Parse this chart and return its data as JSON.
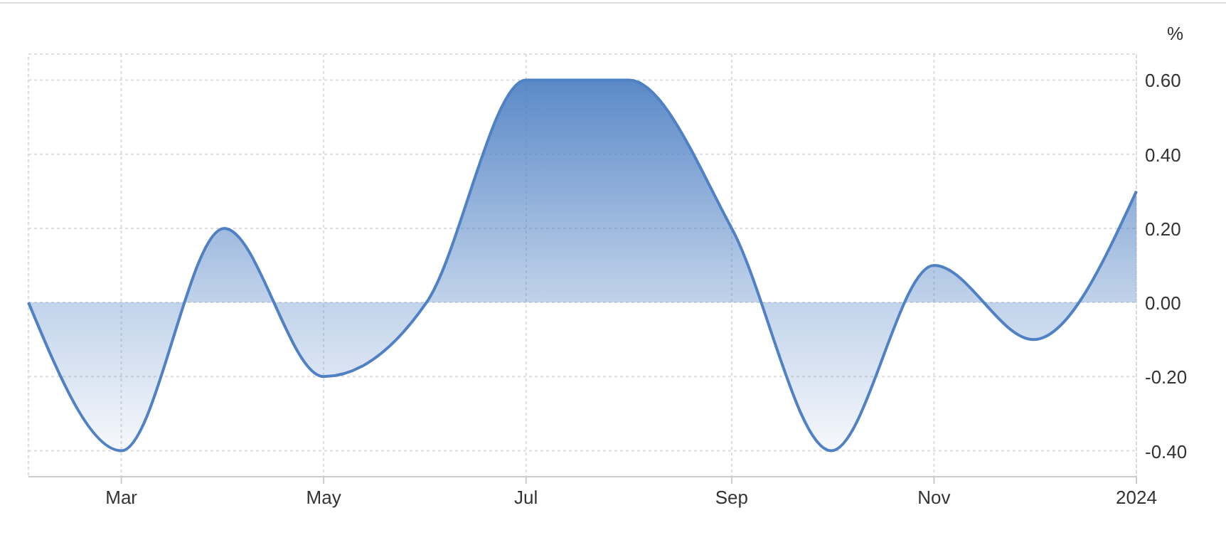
{
  "chart_data": {
    "type": "area",
    "ylabel": "%",
    "x": [
      "2023-02",
      "2023-03",
      "2023-04",
      "2023-05",
      "2023-06",
      "2023-07",
      "2023-08",
      "2023-09",
      "2023-10",
      "2023-11",
      "2023-12",
      "2024-01"
    ],
    "values": [
      0.0,
      -0.4,
      0.2,
      -0.2,
      0.0,
      0.6,
      0.6,
      0.2,
      -0.4,
      0.1,
      -0.1,
      0.3
    ],
    "color": "#4f81c4",
    "xlim": [
      "2023-02",
      "2024-01"
    ],
    "xticks": [
      {
        "value": "2023-03",
        "label": "Mar"
      },
      {
        "value": "2023-05",
        "label": "May"
      },
      {
        "value": "2023-07",
        "label": "Jul"
      },
      {
        "value": "2023-09",
        "label": "Sep"
      },
      {
        "value": "2023-11",
        "label": "Nov"
      },
      {
        "value": "2024-01",
        "label": "2024"
      }
    ],
    "ylim": [
      -0.47,
      0.67
    ],
    "yticks": [
      {
        "value": -0.4,
        "label": "-0.40"
      },
      {
        "value": -0.2,
        "label": "-0.20"
      },
      {
        "value": 0,
        "label": "0.00"
      },
      {
        "value": 0.2,
        "label": "0.20"
      },
      {
        "value": 0.4,
        "label": "0.40"
      },
      {
        "value": 0.6,
        "label": "0.60"
      }
    ],
    "grid": true
  }
}
